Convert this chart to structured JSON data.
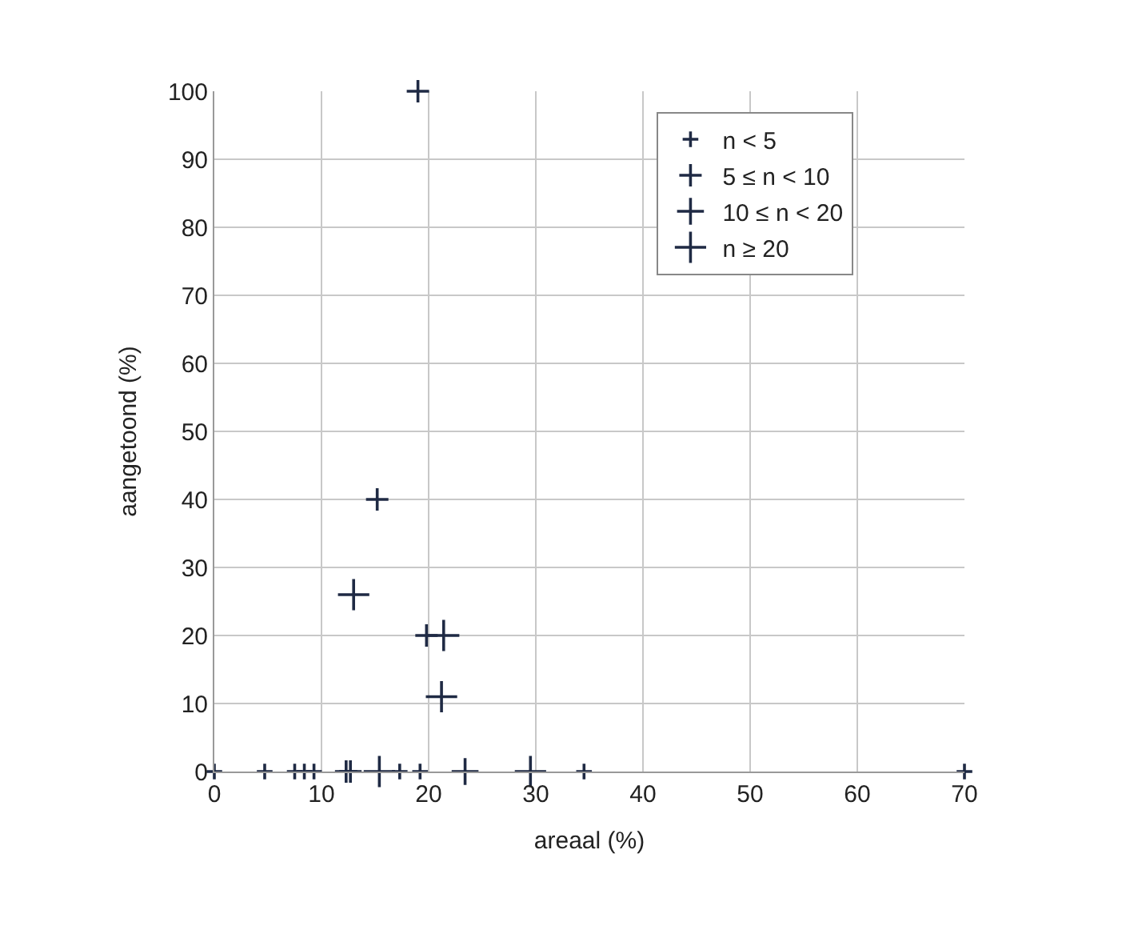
{
  "chart_data": {
    "type": "scatter",
    "xlabel": "areaal (%)",
    "ylabel": "aangetoond (%)",
    "xlim": [
      0,
      70
    ],
    "ylim": [
      0,
      100
    ],
    "xticks": [
      0,
      10,
      20,
      30,
      40,
      50,
      60,
      70
    ],
    "yticks": [
      0,
      10,
      20,
      30,
      40,
      50,
      60,
      70,
      80,
      90,
      100
    ],
    "grid": true,
    "legend": "top right",
    "marker": "cross",
    "series": [
      {
        "name": "n < 5",
        "color": "#1f2a44",
        "x": [
          0,
          4.7,
          7.5,
          8.4,
          9.3,
          17.3,
          19.2,
          34.5,
          70
        ],
        "values": [
          0,
          0,
          0,
          0,
          0,
          0,
          0,
          0,
          0
        ]
      },
      {
        "name": "5 ≤ n < 10",
        "color": "#1f2a44",
        "x": [
          12.3,
          12.7,
          15.2,
          19.8,
          19
        ],
        "values": [
          0,
          0,
          40,
          20,
          100
        ]
      },
      {
        "name": "10 ≤ n < 20",
        "color": "#1f2a44",
        "x": [
          23.4
        ],
        "values": [
          0
        ]
      },
      {
        "name": "n ≥ 20",
        "color": "#1f2a44",
        "x": [
          15.4,
          29.5,
          13,
          21.4,
          21.2
        ],
        "values": [
          0,
          0,
          26,
          20,
          11
        ]
      }
    ]
  }
}
